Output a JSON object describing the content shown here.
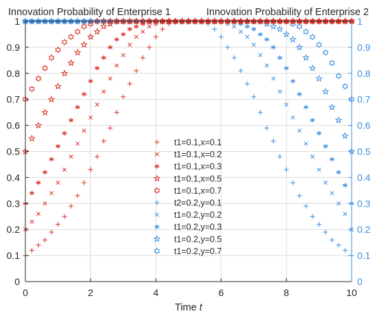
{
  "chart_data": {
    "type": "scatter",
    "titles": {
      "left": "Innovation Probability of Enterprise 1",
      "right": "Innovation Probability of Enterprise 2"
    },
    "xlabel": {
      "prefix": "Time ",
      "var": "t"
    },
    "xlim": [
      0,
      10
    ],
    "ylim": [
      0,
      1
    ],
    "x_ticks": [
      "0",
      "2",
      "4",
      "6",
      "8",
      "10"
    ],
    "y_ticks_left": [
      "0",
      "0.1",
      "0.2",
      "0.3",
      "0.4",
      "0.5",
      "0.6",
      "0.7",
      "0.8",
      "0.9",
      "1"
    ],
    "y_ticks_right": [
      "0",
      "0.1",
      "0.2",
      "0.3",
      "0.4",
      "0.5",
      "0.6",
      "0.7",
      "0.8",
      "0.9",
      "1"
    ],
    "grid": true,
    "legend_position": "center",
    "x": [
      0,
      0.2,
      0.4,
      0.6,
      0.8,
      1.0,
      1.2,
      1.4,
      1.6,
      1.8,
      2.0,
      2.2,
      2.4,
      2.6,
      2.8,
      3.0,
      3.2,
      3.4,
      3.6,
      3.8,
      4.0,
      4.2,
      4.4,
      4.6,
      4.8,
      5.0,
      5.2,
      5.4,
      5.6,
      5.8,
      6.0,
      6.2,
      6.4,
      6.6,
      6.8,
      7.0,
      7.2,
      7.4,
      7.6,
      7.8,
      8.0,
      8.2,
      8.4,
      8.6,
      8.8,
      9.0,
      9.2,
      9.4,
      9.6,
      9.8,
      10.0
    ],
    "series": [
      {
        "name": "t1=0.1,x=0.1",
        "marker": "+",
        "color": "#d93025",
        "axis": "left",
        "values": [
          0.1,
          0.12,
          0.14,
          0.16,
          0.19,
          0.22,
          0.25,
          0.29,
          0.33,
          0.38,
          0.43,
          0.48,
          0.54,
          0.59,
          0.65,
          0.71,
          0.76,
          0.81,
          0.86,
          0.9,
          0.94,
          0.97,
          0.99,
          1.0,
          1.0,
          1.0,
          1.0,
          1.0,
          1.0,
          1.0,
          1.0,
          1.0,
          1.0,
          1.0,
          1.0,
          1.0,
          1.0,
          1.0,
          1.0,
          1.0,
          1.0,
          1.0,
          1.0,
          1.0,
          1.0,
          1.0,
          1.0,
          1.0,
          1.0,
          1.0,
          1.0
        ]
      },
      {
        "name": "t1=0.1,x=0.2",
        "marker": "x",
        "color": "#d93025",
        "axis": "left",
        "values": [
          0.2,
          0.23,
          0.26,
          0.3,
          0.34,
          0.38,
          0.43,
          0.48,
          0.53,
          0.58,
          0.63,
          0.68,
          0.73,
          0.78,
          0.83,
          0.87,
          0.91,
          0.94,
          0.96,
          0.98,
          0.99,
          1.0,
          1.0,
          1.0,
          1.0,
          1.0,
          1.0,
          1.0,
          1.0,
          1.0,
          1.0,
          1.0,
          1.0,
          1.0,
          1.0,
          1.0,
          1.0,
          1.0,
          1.0,
          1.0,
          1.0,
          1.0,
          1.0,
          1.0,
          1.0,
          1.0,
          1.0,
          1.0,
          1.0,
          1.0,
          1.0
        ]
      },
      {
        "name": "t1=0.1,x=0.3",
        "marker": "star6",
        "color": "#d93025",
        "axis": "left",
        "values": [
          0.3,
          0.34,
          0.38,
          0.42,
          0.47,
          0.52,
          0.57,
          0.62,
          0.67,
          0.72,
          0.77,
          0.82,
          0.86,
          0.9,
          0.93,
          0.95,
          0.97,
          0.98,
          0.99,
          1.0,
          1.0,
          1.0,
          1.0,
          1.0,
          1.0,
          1.0,
          1.0,
          1.0,
          1.0,
          1.0,
          1.0,
          1.0,
          1.0,
          1.0,
          1.0,
          1.0,
          1.0,
          1.0,
          1.0,
          1.0,
          1.0,
          1.0,
          1.0,
          1.0,
          1.0,
          1.0,
          1.0,
          1.0,
          1.0,
          1.0,
          1.0
        ]
      },
      {
        "name": "t1=0.1,x=0.5",
        "marker": "pentagram",
        "color": "#d93025",
        "axis": "left",
        "values": [
          0.5,
          0.55,
          0.6,
          0.65,
          0.7,
          0.75,
          0.8,
          0.84,
          0.88,
          0.91,
          0.94,
          0.96,
          0.98,
          0.99,
          1.0,
          1.0,
          1.0,
          1.0,
          1.0,
          1.0,
          1.0,
          1.0,
          1.0,
          1.0,
          1.0,
          1.0,
          1.0,
          1.0,
          1.0,
          1.0,
          1.0,
          1.0,
          1.0,
          1.0,
          1.0,
          1.0,
          1.0,
          1.0,
          1.0,
          1.0,
          1.0,
          1.0,
          1.0,
          1.0,
          1.0,
          1.0,
          1.0,
          1.0,
          1.0,
          1.0,
          1.0
        ]
      },
      {
        "name": "t1=0.1,x=0.7",
        "marker": "hexagram",
        "color": "#d93025",
        "axis": "left",
        "values": [
          0.7,
          0.74,
          0.78,
          0.82,
          0.86,
          0.89,
          0.92,
          0.94,
          0.96,
          0.98,
          0.99,
          1.0,
          1.0,
          1.0,
          1.0,
          1.0,
          1.0,
          1.0,
          1.0,
          1.0,
          1.0,
          1.0,
          1.0,
          1.0,
          1.0,
          1.0,
          1.0,
          1.0,
          1.0,
          1.0,
          1.0,
          1.0,
          1.0,
          1.0,
          1.0,
          1.0,
          1.0,
          1.0,
          1.0,
          1.0,
          1.0,
          1.0,
          1.0,
          1.0,
          1.0,
          1.0,
          1.0,
          1.0,
          1.0,
          1.0,
          1.0
        ]
      },
      {
        "name": "t2=0.2,y=0.1",
        "marker": "+",
        "color": "#3d8fe0",
        "axis": "right",
        "values": [
          1.0,
          1.0,
          1.0,
          1.0,
          1.0,
          1.0,
          1.0,
          1.0,
          1.0,
          1.0,
          1.0,
          1.0,
          1.0,
          1.0,
          1.0,
          1.0,
          1.0,
          1.0,
          1.0,
          1.0,
          1.0,
          1.0,
          1.0,
          1.0,
          1.0,
          1.0,
          1.0,
          1.0,
          0.99,
          0.97,
          0.94,
          0.9,
          0.86,
          0.81,
          0.76,
          0.71,
          0.65,
          0.59,
          0.54,
          0.48,
          0.43,
          0.38,
          0.33,
          0.29,
          0.25,
          0.22,
          0.19,
          0.16,
          0.14,
          0.12,
          0.1
        ]
      },
      {
        "name": "t1=0.2,y=0.2",
        "marker": "x",
        "color": "#3d8fe0",
        "axis": "right",
        "values": [
          1.0,
          1.0,
          1.0,
          1.0,
          1.0,
          1.0,
          1.0,
          1.0,
          1.0,
          1.0,
          1.0,
          1.0,
          1.0,
          1.0,
          1.0,
          1.0,
          1.0,
          1.0,
          1.0,
          1.0,
          1.0,
          1.0,
          1.0,
          1.0,
          1.0,
          1.0,
          1.0,
          1.0,
          1.0,
          1.0,
          1.0,
          0.99,
          0.98,
          0.96,
          0.94,
          0.91,
          0.87,
          0.83,
          0.78,
          0.73,
          0.68,
          0.63,
          0.58,
          0.53,
          0.48,
          0.43,
          0.38,
          0.34,
          0.3,
          0.26,
          0.2
        ]
      },
      {
        "name": "t1=0.2,y=0.3",
        "marker": "star6",
        "color": "#3d8fe0",
        "axis": "right",
        "values": [
          1.0,
          1.0,
          1.0,
          1.0,
          1.0,
          1.0,
          1.0,
          1.0,
          1.0,
          1.0,
          1.0,
          1.0,
          1.0,
          1.0,
          1.0,
          1.0,
          1.0,
          1.0,
          1.0,
          1.0,
          1.0,
          1.0,
          1.0,
          1.0,
          1.0,
          1.0,
          1.0,
          1.0,
          1.0,
          1.0,
          1.0,
          1.0,
          1.0,
          0.99,
          0.98,
          0.97,
          0.95,
          0.93,
          0.9,
          0.86,
          0.82,
          0.77,
          0.72,
          0.67,
          0.62,
          0.57,
          0.52,
          0.47,
          0.42,
          0.37,
          0.3
        ]
      },
      {
        "name": "t1=0.2,y=0.5",
        "marker": "pentagram",
        "color": "#3d8fe0",
        "axis": "right",
        "values": [
          1.0,
          1.0,
          1.0,
          1.0,
          1.0,
          1.0,
          1.0,
          1.0,
          1.0,
          1.0,
          1.0,
          1.0,
          1.0,
          1.0,
          1.0,
          1.0,
          1.0,
          1.0,
          1.0,
          1.0,
          1.0,
          1.0,
          1.0,
          1.0,
          1.0,
          1.0,
          1.0,
          1.0,
          1.0,
          1.0,
          1.0,
          1.0,
          1.0,
          1.0,
          1.0,
          1.0,
          1.0,
          0.99,
          0.98,
          0.97,
          0.95,
          0.93,
          0.9,
          0.86,
          0.82,
          0.78,
          0.73,
          0.67,
          0.62,
          0.56,
          0.5
        ]
      },
      {
        "name": "t1=0.2,y=0.7",
        "marker": "hexagram",
        "color": "#3d8fe0",
        "axis": "right",
        "values": [
          1.0,
          1.0,
          1.0,
          1.0,
          1.0,
          1.0,
          1.0,
          1.0,
          1.0,
          1.0,
          1.0,
          1.0,
          1.0,
          1.0,
          1.0,
          1.0,
          1.0,
          1.0,
          1.0,
          1.0,
          1.0,
          1.0,
          1.0,
          1.0,
          1.0,
          1.0,
          1.0,
          1.0,
          1.0,
          1.0,
          1.0,
          1.0,
          1.0,
          1.0,
          1.0,
          1.0,
          1.0,
          1.0,
          1.0,
          1.0,
          1.0,
          0.99,
          0.98,
          0.96,
          0.94,
          0.91,
          0.88,
          0.84,
          0.79,
          0.75,
          0.7
        ]
      }
    ],
    "colors": {
      "enterprise1": "#d93025",
      "enterprise2": "#3d8fe0",
      "axis_left": "#262626",
      "axis_right": "#3d8fe0",
      "grid": "#dcdcdc"
    }
  }
}
